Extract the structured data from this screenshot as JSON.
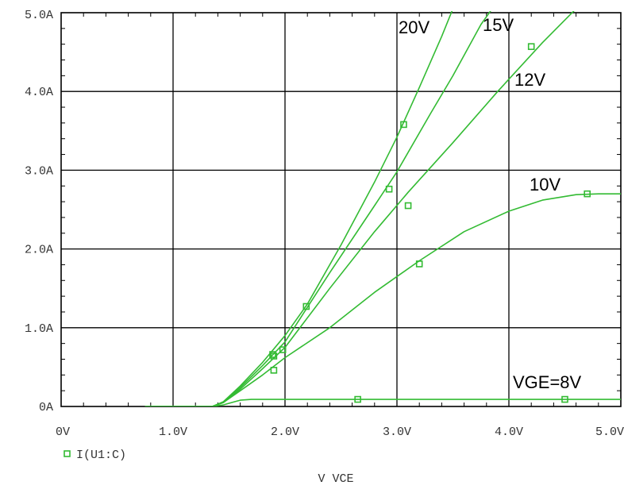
{
  "chart_data": {
    "type": "line",
    "xlabel": "V VCE",
    "ylabel": "",
    "xlim": [
      0,
      5
    ],
    "ylim": [
      0,
      5
    ],
    "grid": true,
    "x_ticks": [
      "0V",
      "1.0V",
      "2.0V",
      "3.0V",
      "4.0V",
      "5.0V"
    ],
    "y_ticks": [
      "0A",
      "1.0A",
      "2.0A",
      "3.0A",
      "4.0A",
      "5.0A"
    ],
    "legend": {
      "label": "I(U1:C)",
      "placement": "bottom-left",
      "marker": "square"
    },
    "colors": {
      "series": "#33bb33",
      "grid": "#000000",
      "background": "#ffffff"
    },
    "series": [
      {
        "name": "VGE=8V",
        "label": "VGE=8V",
        "x": [
          0.75,
          1.35,
          1.45,
          1.55,
          1.6,
          1.7,
          2.0,
          3.0,
          4.0,
          5.0
        ],
        "y": [
          0,
          0,
          0.02,
          0.06,
          0.08,
          0.09,
          0.09,
          0.09,
          0.09,
          0.09
        ],
        "markers": [
          [
            2.65,
            0.09
          ],
          [
            4.5,
            0.09
          ]
        ]
      },
      {
        "name": "10V",
        "label": "10V",
        "x": [
          0.75,
          1.35,
          1.45,
          1.6,
          1.8,
          2.0,
          2.4,
          2.8,
          3.2,
          3.6,
          4.0,
          4.3,
          4.6,
          4.8,
          5.0
        ],
        "y": [
          0,
          0,
          0.05,
          0.2,
          0.4,
          0.62,
          1.0,
          1.45,
          1.85,
          2.22,
          2.48,
          2.62,
          2.69,
          2.7,
          2.7
        ],
        "markers": [
          [
            1.9,
            0.46
          ],
          [
            3.2,
            1.81
          ],
          [
            4.7,
            2.7
          ]
        ]
      },
      {
        "name": "12V",
        "label": "12V",
        "x": [
          0.75,
          1.35,
          1.45,
          1.6,
          1.8,
          2.0,
          2.4,
          2.8,
          3.1,
          3.5,
          3.9,
          4.3,
          4.6
        ],
        "y": [
          0,
          0,
          0.05,
          0.22,
          0.48,
          0.75,
          1.5,
          2.22,
          2.72,
          3.35,
          4.0,
          4.62,
          5.05
        ],
        "markers": [
          [
            1.9,
            0.64
          ],
          [
            3.1,
            2.55
          ],
          [
            4.2,
            4.57
          ]
        ]
      },
      {
        "name": "15V",
        "label": "15V",
        "x": [
          0.75,
          1.35,
          1.45,
          1.6,
          1.8,
          2.0,
          2.4,
          2.8,
          3.0,
          3.3,
          3.5,
          3.75,
          3.85
        ],
        "y": [
          0,
          0,
          0.05,
          0.24,
          0.52,
          0.82,
          1.7,
          2.55,
          2.98,
          3.72,
          4.2,
          4.85,
          5.05
        ],
        "markers": [
          [
            1.98,
            0.72
          ],
          [
            2.93,
            2.76
          ]
        ]
      },
      {
        "name": "20V",
        "label": "20V",
        "x": [
          0.75,
          1.35,
          1.45,
          1.6,
          1.8,
          2.0,
          2.2,
          2.5,
          2.8,
          3.0,
          3.2,
          3.4,
          3.5
        ],
        "y": [
          0,
          0,
          0.06,
          0.26,
          0.56,
          0.9,
          1.3,
          2.05,
          2.85,
          3.42,
          4.05,
          4.7,
          5.05
        ],
        "markers": [
          [
            1.89,
            0.66
          ],
          [
            2.19,
            1.27
          ],
          [
            3.06,
            3.58
          ]
        ]
      }
    ],
    "curve_labels": [
      "20V",
      "15V",
      "12V",
      "10V",
      "VGE=8V"
    ]
  }
}
